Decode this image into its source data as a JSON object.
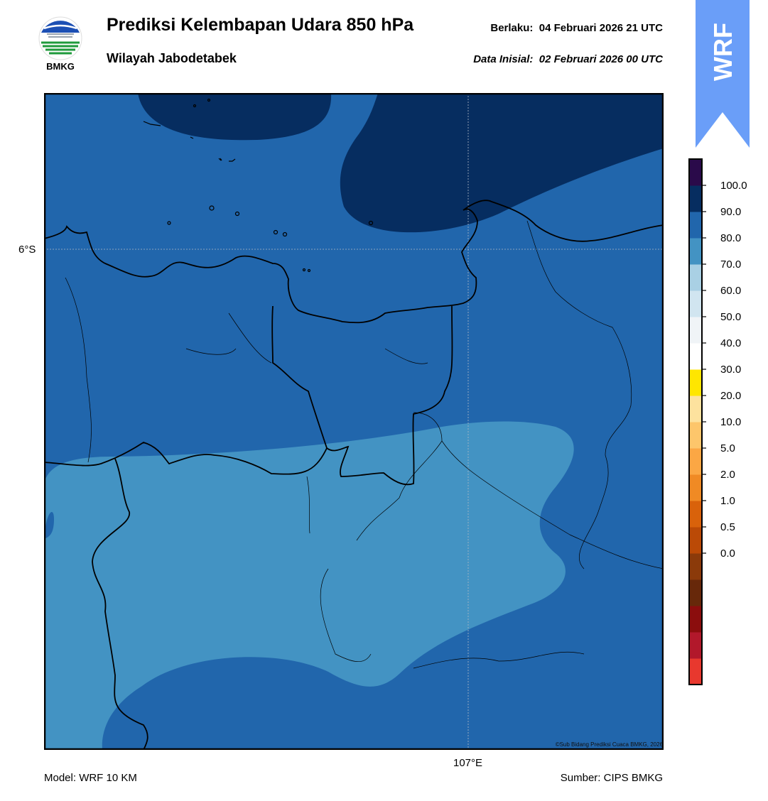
{
  "header": {
    "title": "Prediksi Kelembapan Udara 850 hPa",
    "subtitle": "Wilayah Jabodetabek",
    "valid_label": "Berlaku:",
    "valid_time": "04 Februari 2026 21 UTC",
    "init_label": "Data Inisial:",
    "init_time": "02 Februari 2026 00 UTC"
  },
  "logo": {
    "text": "BMKG",
    "icon": "bmkg-logo-icon"
  },
  "banner": {
    "text": "WRF",
    "color": "#6a9ef8"
  },
  "map": {
    "lat_label": "6°S",
    "lon_label": "107°E",
    "credit": "©Sub Bidang Prediksi Cuaca BMKG, 2026",
    "fill_colors": {
      "range_70_80": "#4393c3",
      "range_80_90": "#2166ac",
      "range_90_100": "#062d60"
    }
  },
  "colorbar": {
    "ticks": [
      "100.0",
      "90.0",
      "80.0",
      "70.0",
      "60.0",
      "50.0",
      "40.0",
      "30.0",
      "20.0",
      "10.0",
      "5.0",
      "2.0",
      "1.0",
      "0.5",
      "0.0"
    ],
    "colors": [
      "#e8382e",
      "#b2182b",
      "#8b0d0d",
      "#67280a",
      "#8b3a0a",
      "#bb4a06",
      "#d9620b",
      "#f08a24",
      "#fba744",
      "#fdc66b",
      "#fde29e",
      "#ffe600",
      "#ffffff",
      "#f0f4f7",
      "#d1e5f0",
      "#a9d0e4",
      "#4393c3",
      "#2166ac",
      "#062d60",
      "#2a0a4a"
    ]
  },
  "footer": {
    "model": "Model: WRF 10 KM",
    "source": "Sumber: CIPS BMKG"
  }
}
